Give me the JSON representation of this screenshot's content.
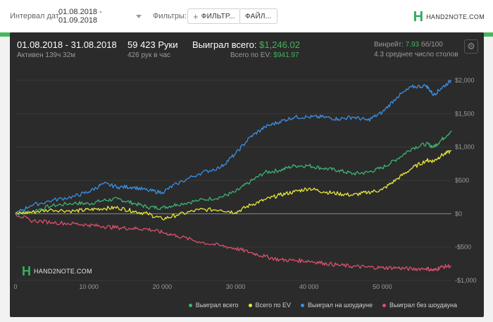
{
  "toolbar": {
    "date_label": "Интервал дат:",
    "date_value": "01.08.2018 - 01.09.2018",
    "filters_label": "Фильтры:",
    "filter_btn": "ФИЛЬТР...",
    "file_btn": "ФАЙЛ...",
    "brand": "HAND2NOTE.COM",
    "brand_logo": "H"
  },
  "stats": {
    "date_range": "01.08.2018 - 31.08.2018",
    "active": "Активен 139ч 32м",
    "hands": "59 423 Руки",
    "hands_per_hour": "426 рук в час",
    "won_label": "Выиграл всего:",
    "won_value": "$1,246.02",
    "ev_label": "Всего по EV:",
    "ev_value": "$941.97",
    "winrate_label": "Винрейт:",
    "winrate_value": "7.93",
    "winrate_unit": "бб/100",
    "tables": "4.3 среднее число столов"
  },
  "watermark": {
    "logo": "H",
    "text": "HAND2NOTE.COM"
  },
  "chart_data": {
    "type": "line",
    "xlim": [
      0,
      59423
    ],
    "ylim": [
      -1000,
      2000
    ],
    "x_ticks": [
      0,
      10000,
      20000,
      30000,
      40000,
      50000
    ],
    "x_tick_labels": [
      "0",
      "10 000",
      "20 000",
      "30 000",
      "40 000",
      "50 000"
    ],
    "y_ticks": [
      2000,
      1500,
      1000,
      500,
      0,
      -500,
      -1000
    ],
    "y_tick_labels": [
      "$2,000",
      "$1,500",
      "$1,000",
      "$500",
      "$0",
      "-$500",
      "-$1,000"
    ],
    "series": [
      {
        "name": "Выиграл всего",
        "color": "#3cb371",
        "x": [
          0,
          2000,
          5000,
          8000,
          10000,
          12000,
          14000,
          16000,
          18000,
          20000,
          22000,
          25000,
          28000,
          30000,
          32000,
          34000,
          36000,
          38000,
          40000,
          42000,
          44000,
          46000,
          48000,
          50000,
          52000,
          54000,
          56000,
          57000,
          58000,
          59423
        ],
        "y": [
          0,
          30,
          120,
          160,
          150,
          200,
          220,
          160,
          100,
          90,
          140,
          200,
          250,
          330,
          480,
          620,
          650,
          720,
          720,
          680,
          650,
          600,
          620,
          690,
          820,
          980,
          1050,
          1000,
          1100,
          1246
        ]
      },
      {
        "name": "Всего по EV",
        "color": "#e6e63c",
        "x": [
          0,
          2000,
          5000,
          8000,
          10000,
          12000,
          14000,
          16000,
          18000,
          20000,
          22000,
          25000,
          28000,
          30000,
          32000,
          34000,
          36000,
          38000,
          40000,
          42000,
          44000,
          46000,
          48000,
          50000,
          52000,
          54000,
          56000,
          57000,
          58000,
          59423
        ],
        "y": [
          0,
          20,
          60,
          40,
          60,
          80,
          90,
          40,
          0,
          -80,
          -20,
          60,
          60,
          20,
          130,
          210,
          280,
          330,
          380,
          330,
          300,
          280,
          320,
          360,
          520,
          680,
          800,
          790,
          870,
          942
        ]
      },
      {
        "name": "Выиграл на шоудауне",
        "color": "#3b8fe0",
        "x": [
          0,
          2000,
          5000,
          8000,
          10000,
          12000,
          14000,
          16000,
          18000,
          20000,
          22000,
          25000,
          28000,
          30000,
          32000,
          34000,
          36000,
          38000,
          40000,
          42000,
          44000,
          46000,
          48000,
          50000,
          52000,
          54000,
          56000,
          57000,
          58000,
          59423
        ],
        "y": [
          0,
          120,
          200,
          260,
          330,
          450,
          400,
          400,
          350,
          320,
          450,
          600,
          700,
          900,
          1150,
          1300,
          1380,
          1450,
          1450,
          1450,
          1420,
          1450,
          1400,
          1520,
          1750,
          1900,
          1920,
          1780,
          1880,
          2000
        ]
      },
      {
        "name": "Выиграл без шоудауна",
        "color": "#d9506e",
        "x": [
          0,
          2000,
          5000,
          8000,
          10000,
          12000,
          14000,
          16000,
          18000,
          20000,
          22000,
          25000,
          28000,
          30000,
          32000,
          34000,
          36000,
          38000,
          40000,
          42000,
          44000,
          46000,
          48000,
          50000,
          52000,
          54000,
          56000,
          57000,
          58000,
          59423
        ],
        "y": [
          0,
          -100,
          -130,
          -150,
          -170,
          -190,
          -210,
          -220,
          -230,
          -280,
          -330,
          -420,
          -480,
          -520,
          -580,
          -640,
          -690,
          -700,
          -710,
          -740,
          -770,
          -790,
          -800,
          -810,
          -810,
          -830,
          -820,
          -850,
          -800,
          -780
        ]
      }
    ]
  }
}
